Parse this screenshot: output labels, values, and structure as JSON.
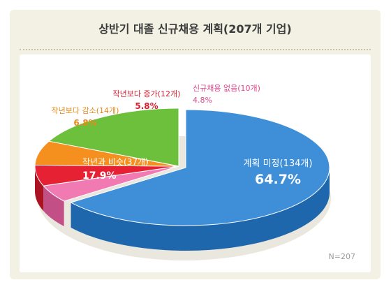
{
  "chart_data": {
    "type": "pie",
    "title": "상반기 대졸 신규채용 계획(207개 기업)",
    "note": "N=207",
    "slices": [
      {
        "label": "계획 미정(134개)",
        "value": 64.7,
        "value_label": "64.7%",
        "color": "#3f8fd8",
        "side": "#1f67ad",
        "label_color": "#ffffff"
      },
      {
        "label": "신규채용 없음(10개)",
        "value": 4.8,
        "value_label": "4.8%",
        "color": "#f27ab3",
        "side": "#c24f86",
        "label_color": "#e0478f"
      },
      {
        "label": "작년보다 증가(12개)",
        "value": 5.8,
        "value_label": "5.8%",
        "color": "#e62133",
        "side": "#a91322",
        "label_color": "#d9202f"
      },
      {
        "label": "작년보다 감소(14개)",
        "value": 6.8,
        "value_label": "6.8%",
        "color": "#f5901e",
        "side": "#bf6a0f",
        "label_color": "#e88a1a"
      },
      {
        "label": "작년과 비슷(37개)",
        "value": 17.9,
        "value_label": "17.9%",
        "color": "#6cc03c",
        "side": "#468d22",
        "label_color": "#ffffff"
      }
    ]
  }
}
